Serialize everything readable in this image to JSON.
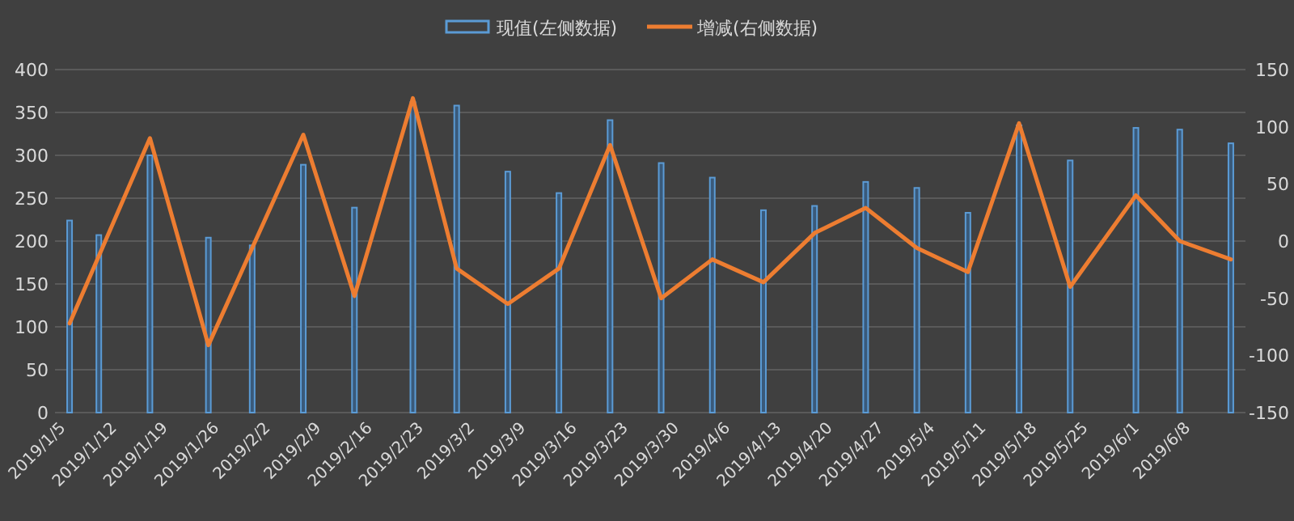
{
  "chart_data": {
    "type": "bar",
    "x": [
      "2019-01-05",
      "2019-01-09",
      "2019-01-16",
      "2019-01-24",
      "2019-01-30",
      "2019-02-06",
      "2019-02-13",
      "2019-02-21",
      "2019-02-27",
      "2019-03-06",
      "2019-03-13",
      "2019-03-20",
      "2019-03-27",
      "2019-04-03",
      "2019-04-10",
      "2019-04-17",
      "2019-04-24",
      "2019-05-01",
      "2019-05-08",
      "2019-05-15",
      "2019-05-22",
      "2019-05-31",
      "2019-06-06",
      "2019-06-13"
    ],
    "series": [
      {
        "name": "现值(左侧数据)",
        "color": "#5b9bd5",
        "values": [
          224,
          207,
          300,
          204,
          195,
          289,
          239,
          362,
          358,
          281,
          256,
          341,
          291,
          274,
          236,
          241,
          269,
          262,
          233,
          335,
          294,
          332,
          330,
          314
        ]
      },
      {
        "name": "增减(右侧数据)",
        "type": "line",
        "axis": "y2",
        "color": "#ed7d31",
        "x": [
          "2019-01-05",
          "2019-01-16",
          "2019-01-24",
          "2019-02-06",
          "2019-02-13",
          "2019-02-21",
          "2019-02-27",
          "2019-03-06",
          "2019-03-13",
          "2019-03-20",
          "2019-03-27",
          "2019-04-03",
          "2019-04-10",
          "2019-04-17",
          "2019-04-24",
          "2019-05-01",
          "2019-05-08",
          "2019-05-15",
          "2019-05-22",
          "2019-05-31",
          "2019-06-06",
          "2019-06-13"
        ],
        "values": [
          -72,
          90,
          -91,
          93,
          -48,
          125,
          -24,
          -55,
          -24,
          84,
          -50,
          -16,
          -36,
          7,
          29,
          -6,
          -27,
          103,
          -40,
          40,
          0,
          -16
        ]
      }
    ],
    "xlim": [
      "2019-01-03",
      "2019-06-15"
    ],
    "xticks": [
      {
        "value": "2019-01-05",
        "label": "2019/1/5"
      },
      {
        "value": "2019-01-12",
        "label": "2019/1/12"
      },
      {
        "value": "2019-01-19",
        "label": "2019/1/19"
      },
      {
        "value": "2019-01-26",
        "label": "2019/1/26"
      },
      {
        "value": "2019-02-02",
        "label": "2019/2/2"
      },
      {
        "value": "2019-02-09",
        "label": "2019/2/9"
      },
      {
        "value": "2019-02-16",
        "label": "2019/2/16"
      },
      {
        "value": "2019-02-23",
        "label": "2019/2/23"
      },
      {
        "value": "2019-03-02",
        "label": "2019/3/2"
      },
      {
        "value": "2019-03-09",
        "label": "2019/3/9"
      },
      {
        "value": "2019-03-16",
        "label": "2019/3/16"
      },
      {
        "value": "2019-03-23",
        "label": "2019/3/23"
      },
      {
        "value": "2019-03-30",
        "label": "2019/3/30"
      },
      {
        "value": "2019-04-06",
        "label": "2019/4/6"
      },
      {
        "value": "2019-04-13",
        "label": "2019/4/13"
      },
      {
        "value": "2019-04-20",
        "label": "2019/4/20"
      },
      {
        "value": "2019-04-27",
        "label": "2019/4/27"
      },
      {
        "value": "2019-05-04",
        "label": "2019/5/4"
      },
      {
        "value": "2019-05-11",
        "label": "2019/5/11"
      },
      {
        "value": "2019-05-18",
        "label": "2019/5/18"
      },
      {
        "value": "2019-05-25",
        "label": "2019/5/25"
      },
      {
        "value": "2019-06-01",
        "label": "2019/6/1"
      },
      {
        "value": "2019-06-08",
        "label": "2019/6/8"
      }
    ],
    "ylim": [
      0,
      400
    ],
    "yticks": [
      0,
      50,
      100,
      150,
      200,
      250,
      300,
      350,
      400
    ],
    "y2lim": [
      -150,
      150
    ],
    "y2ticks": [
      -150,
      -100,
      -50,
      0,
      50,
      100,
      150
    ],
    "grid": "y",
    "legend": "top"
  }
}
